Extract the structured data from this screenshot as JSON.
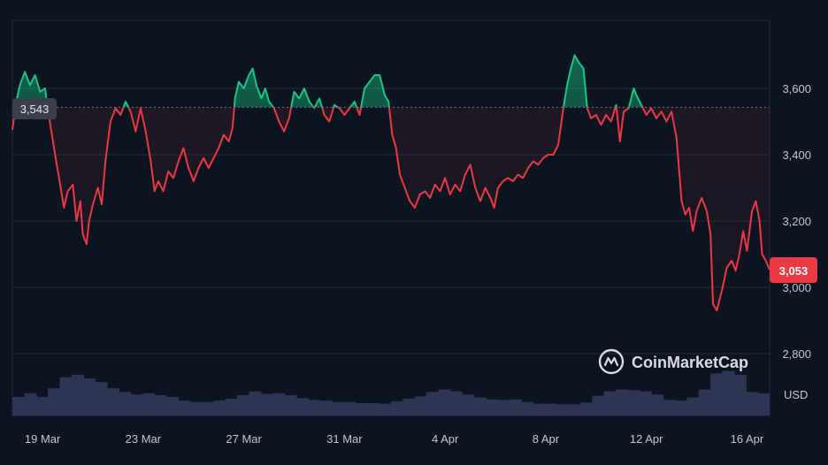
{
  "chart_data": {
    "type": "area",
    "title": "",
    "xlabel": "",
    "ylabel": "",
    "unit_label": "USD",
    "brand": "CoinMarketCap",
    "ylim": [
      2700,
      3800
    ],
    "y_ticks": [
      2800,
      3000,
      3200,
      3400,
      3600
    ],
    "y_tick_labels": [
      "2,800",
      "3,000",
      "3,200",
      "3,400",
      "3,600"
    ],
    "x_tick_labels": [
      "19 Mar",
      "23 Mar",
      "27 Mar",
      "31 Mar",
      "4 Apr",
      "8 Apr",
      "12 Apr",
      "16 Apr"
    ],
    "x_tick_days": [
      2,
      6,
      10,
      14,
      18,
      22,
      26,
      30
    ],
    "x_range_days": [
      0.8,
      30.9
    ],
    "baseline": {
      "value": 3543,
      "label": "3,543"
    },
    "current": {
      "value": 3053,
      "label": "3,053"
    },
    "colors": {
      "up": "#16c784",
      "down": "#ea3943",
      "volume": "#2c3553"
    },
    "grid": true,
    "legend": "none",
    "series": [
      {
        "values": [
          [
            0.8,
            3475
          ],
          [
            0.95,
            3560
          ],
          [
            1.1,
            3610
          ],
          [
            1.3,
            3650
          ],
          [
            1.5,
            3610
          ],
          [
            1.7,
            3640
          ],
          [
            1.9,
            3590
          ],
          [
            2.1,
            3600
          ],
          [
            2.2,
            3540
          ],
          [
            2.35,
            3470
          ],
          [
            2.5,
            3400
          ],
          [
            2.7,
            3310
          ],
          [
            2.85,
            3240
          ],
          [
            3.0,
            3290
          ],
          [
            3.2,
            3310
          ],
          [
            3.35,
            3200
          ],
          [
            3.5,
            3260
          ],
          [
            3.6,
            3160
          ],
          [
            3.75,
            3130
          ],
          [
            3.85,
            3200
          ],
          [
            4.0,
            3250
          ],
          [
            4.2,
            3300
          ],
          [
            4.35,
            3250
          ],
          [
            4.5,
            3380
          ],
          [
            4.7,
            3500
          ],
          [
            4.9,
            3540
          ],
          [
            5.1,
            3520
          ],
          [
            5.3,
            3560
          ],
          [
            5.5,
            3530
          ],
          [
            5.7,
            3470
          ],
          [
            5.9,
            3540
          ],
          [
            6.1,
            3470
          ],
          [
            6.3,
            3380
          ],
          [
            6.45,
            3290
          ],
          [
            6.6,
            3320
          ],
          [
            6.8,
            3290
          ],
          [
            7.0,
            3350
          ],
          [
            7.2,
            3330
          ],
          [
            7.4,
            3380
          ],
          [
            7.6,
            3420
          ],
          [
            7.8,
            3360
          ],
          [
            8.0,
            3320
          ],
          [
            8.2,
            3360
          ],
          [
            8.4,
            3390
          ],
          [
            8.6,
            3360
          ],
          [
            8.8,
            3390
          ],
          [
            9.0,
            3420
          ],
          [
            9.2,
            3460
          ],
          [
            9.4,
            3440
          ],
          [
            9.55,
            3480
          ],
          [
            9.65,
            3570
          ],
          [
            9.8,
            3620
          ],
          [
            10.0,
            3600
          ],
          [
            10.2,
            3640
          ],
          [
            10.35,
            3660
          ],
          [
            10.5,
            3610
          ],
          [
            10.7,
            3570
          ],
          [
            10.85,
            3600
          ],
          [
            11.0,
            3560
          ],
          [
            11.2,
            3540
          ],
          [
            11.4,
            3500
          ],
          [
            11.6,
            3470
          ],
          [
            11.8,
            3510
          ],
          [
            12.0,
            3590
          ],
          [
            12.2,
            3570
          ],
          [
            12.4,
            3600
          ],
          [
            12.6,
            3560
          ],
          [
            12.8,
            3540
          ],
          [
            13.0,
            3570
          ],
          [
            13.2,
            3520
          ],
          [
            13.4,
            3500
          ],
          [
            13.6,
            3550
          ],
          [
            13.8,
            3540
          ],
          [
            14.0,
            3520
          ],
          [
            14.2,
            3540
          ],
          [
            14.4,
            3560
          ],
          [
            14.6,
            3520
          ],
          [
            14.8,
            3600
          ],
          [
            15.0,
            3620
          ],
          [
            15.2,
            3640
          ],
          [
            15.4,
            3640
          ],
          [
            15.6,
            3580
          ],
          [
            15.75,
            3560
          ],
          [
            15.9,
            3460
          ],
          [
            16.05,
            3420
          ],
          [
            16.2,
            3340
          ],
          [
            16.4,
            3300
          ],
          [
            16.6,
            3260
          ],
          [
            16.8,
            3240
          ],
          [
            17.0,
            3280
          ],
          [
            17.2,
            3290
          ],
          [
            17.4,
            3270
          ],
          [
            17.6,
            3310
          ],
          [
            17.8,
            3290
          ],
          [
            18.0,
            3330
          ],
          [
            18.2,
            3280
          ],
          [
            18.4,
            3310
          ],
          [
            18.6,
            3290
          ],
          [
            18.8,
            3340
          ],
          [
            19.0,
            3370
          ],
          [
            19.2,
            3300
          ],
          [
            19.4,
            3260
          ],
          [
            19.6,
            3300
          ],
          [
            19.8,
            3270
          ],
          [
            19.95,
            3240
          ],
          [
            20.1,
            3300
          ],
          [
            20.3,
            3320
          ],
          [
            20.5,
            3330
          ],
          [
            20.7,
            3320
          ],
          [
            20.9,
            3340
          ],
          [
            21.1,
            3330
          ],
          [
            21.3,
            3360
          ],
          [
            21.5,
            3380
          ],
          [
            21.7,
            3370
          ],
          [
            21.9,
            3390
          ],
          [
            22.1,
            3400
          ],
          [
            22.3,
            3400
          ],
          [
            22.5,
            3430
          ],
          [
            22.7,
            3540
          ],
          [
            22.85,
            3610
          ],
          [
            23.0,
            3660
          ],
          [
            23.15,
            3700
          ],
          [
            23.3,
            3680
          ],
          [
            23.5,
            3660
          ],
          [
            23.65,
            3540
          ],
          [
            23.8,
            3510
          ],
          [
            24.0,
            3520
          ],
          [
            24.2,
            3490
          ],
          [
            24.4,
            3520
          ],
          [
            24.6,
            3500
          ],
          [
            24.8,
            3550
          ],
          [
            24.95,
            3440
          ],
          [
            25.1,
            3530
          ],
          [
            25.3,
            3540
          ],
          [
            25.5,
            3600
          ],
          [
            25.6,
            3580
          ],
          [
            25.8,
            3550
          ],
          [
            26.0,
            3520
          ],
          [
            26.2,
            3540
          ],
          [
            26.4,
            3510
          ],
          [
            26.6,
            3530
          ],
          [
            26.8,
            3500
          ],
          [
            27.0,
            3530
          ],
          [
            27.2,
            3450
          ],
          [
            27.4,
            3260
          ],
          [
            27.55,
            3220
          ],
          [
            27.7,
            3240
          ],
          [
            27.85,
            3170
          ],
          [
            28.0,
            3230
          ],
          [
            28.2,
            3270
          ],
          [
            28.4,
            3230
          ],
          [
            28.55,
            3160
          ],
          [
            28.65,
            2950
          ],
          [
            28.8,
            2930
          ],
          [
            29.0,
            2990
          ],
          [
            29.2,
            3060
          ],
          [
            29.4,
            3080
          ],
          [
            29.55,
            3050
          ],
          [
            29.7,
            3100
          ],
          [
            29.85,
            3170
          ],
          [
            30.0,
            3110
          ],
          [
            30.2,
            3230
          ],
          [
            30.35,
            3260
          ],
          [
            30.5,
            3200
          ],
          [
            30.6,
            3100
          ],
          [
            30.75,
            3080
          ],
          [
            30.9,
            3053
          ]
        ]
      },
      {
        "name": "volume",
        "values": [
          0.3,
          0.36,
          0.3,
          0.44,
          0.62,
          0.66,
          0.6,
          0.54,
          0.44,
          0.38,
          0.34,
          0.36,
          0.33,
          0.3,
          0.24,
          0.22,
          0.22,
          0.24,
          0.27,
          0.33,
          0.39,
          0.35,
          0.36,
          0.33,
          0.28,
          0.25,
          0.24,
          0.22,
          0.22,
          0.2,
          0.2,
          0.19,
          0.23,
          0.27,
          0.31,
          0.38,
          0.42,
          0.39,
          0.34,
          0.29,
          0.26,
          0.25,
          0.26,
          0.22,
          0.19,
          0.19,
          0.18,
          0.18,
          0.21,
          0.32,
          0.39,
          0.42,
          0.41,
          0.39,
          0.34,
          0.25,
          0.24,
          0.29,
          0.42,
          0.68,
          0.72,
          0.66,
          0.38,
          0.36
        ]
      }
    ]
  }
}
